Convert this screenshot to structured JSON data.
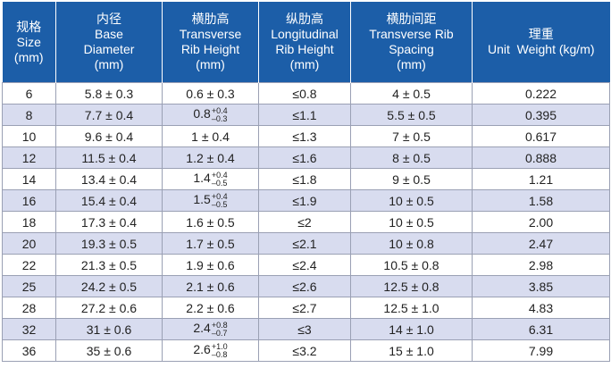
{
  "table": {
    "header": [
      [
        "规格",
        "Size",
        "(mm)"
      ],
      [
        "内径",
        "Base",
        "Diameter",
        "(mm)"
      ],
      [
        "横肋高",
        "Transverse",
        "Rib Height",
        "(mm)"
      ],
      [
        "纵肋高",
        "Longitudinal",
        "Rib Height",
        "(mm)"
      ],
      [
        "横肋间距",
        "Transverse Rib",
        "Spacing",
        "(mm)"
      ],
      [
        "理重",
        "Unit  Weight (kg/m)"
      ]
    ],
    "rows": [
      [
        "6",
        "5.8 ± 0.3",
        "0.6 ± 0.3",
        "≤0.8",
        "4 ± 0.5",
        "0.222"
      ],
      [
        "8",
        "7.7 ± 0.4",
        {
          "base": "0.8",
          "sup": "+0.4",
          "sub": "–0.3"
        },
        "≤1.1",
        "5.5 ± 0.5",
        "0.395"
      ],
      [
        "10",
        "9.6 ± 0.4",
        "1 ± 0.4",
        "≤1.3",
        "7 ± 0.5",
        "0.617"
      ],
      [
        "12",
        "11.5 ± 0.4",
        "1.2 ± 0.4",
        "≤1.6",
        "8 ± 0.5",
        "0.888"
      ],
      [
        "14",
        "13.4 ± 0.4",
        {
          "base": "1.4",
          "sup": "+0.4",
          "sub": "–0.5"
        },
        "≤1.8",
        "9 ± 0.5",
        "1.21"
      ],
      [
        "16",
        "15.4 ± 0.4",
        {
          "base": "1.5",
          "sup": "+0.4",
          "sub": "–0.5"
        },
        "≤1.9",
        "10 ± 0.5",
        "1.58"
      ],
      [
        "18",
        "17.3 ± 0.4",
        "1.6 ± 0.5",
        "≤2",
        "10 ± 0.5",
        "2.00"
      ],
      [
        "20",
        "19.3 ± 0.5",
        "1.7 ± 0.5",
        "≤2.1",
        "10 ± 0.8",
        "2.47"
      ],
      [
        "22",
        "21.3 ± 0.5",
        "1.9 ± 0.6",
        "≤2.4",
        "10.5 ± 0.8",
        "2.98"
      ],
      [
        "25",
        "24.2 ± 0.5",
        "2.1 ± 0.6",
        "≤2.6",
        "12.5 ± 0.8",
        "3.85"
      ],
      [
        "28",
        "27.2 ± 0.6",
        "2.2 ± 0.6",
        "≤2.7",
        "12.5 ± 1.0",
        "4.83"
      ],
      [
        "32",
        "31 ± 0.6",
        {
          "base": "2.4",
          "sup": "+0.8",
          "sub": "–0.7"
        },
        "≤3",
        "14 ± 1.0",
        "6.31"
      ],
      [
        "36",
        "35 ± 0.6",
        {
          "base": "2.6",
          "sup": "+1.0",
          "sub": "–0.8"
        },
        "≤3.2",
        "15 ± 1.0",
        "7.99"
      ]
    ]
  }
}
